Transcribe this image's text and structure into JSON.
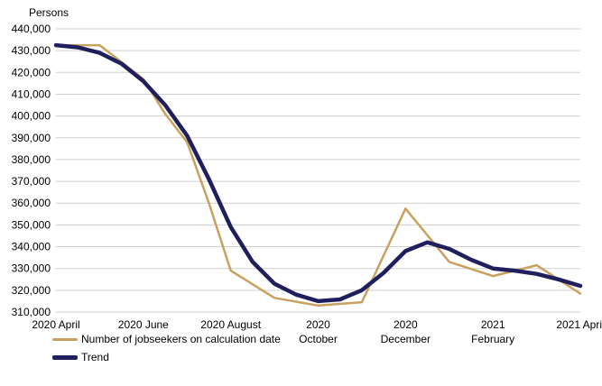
{
  "chart_data": {
    "type": "line",
    "ylabel": "Persons",
    "title": "",
    "ylim": [
      310000,
      440000
    ],
    "yticks": [
      310000,
      320000,
      330000,
      340000,
      350000,
      360000,
      370000,
      380000,
      390000,
      400000,
      410000,
      420000,
      430000,
      440000
    ],
    "ytick_labels": [
      "310,000",
      "320,000",
      "330,000",
      "340,000",
      "350,000",
      "360,000",
      "370,000",
      "380,000",
      "390,000",
      "400,000",
      "410,000",
      "420,000",
      "430,000",
      "440,000"
    ],
    "xlim": [
      0,
      12
    ],
    "x_ticks": [
      {
        "x": 0,
        "line1": "2020 April",
        "line2": ""
      },
      {
        "x": 2,
        "line1": "2020 June",
        "line2": ""
      },
      {
        "x": 4,
        "line1": "2020 August",
        "line2": ""
      },
      {
        "x": 6,
        "line1": "2020",
        "line2": "October"
      },
      {
        "x": 8,
        "line1": "2020",
        "line2": "December"
      },
      {
        "x": 10,
        "line1": "2021",
        "line2": "February"
      },
      {
        "x": 12,
        "line1": "2021 April",
        "line2": ""
      }
    ],
    "series": [
      {
        "name": "Number of jobseekers on calculation date",
        "color": "#c9a15f",
        "points": [
          [
            0,
            432500
          ],
          [
            1,
            432500
          ],
          [
            2,
            417000
          ],
          [
            2.5,
            401000
          ],
          [
            3,
            388000
          ],
          [
            3.5,
            360000
          ],
          [
            4,
            329000
          ],
          [
            5,
            316500
          ],
          [
            6,
            313000
          ],
          [
            7,
            314500
          ],
          [
            8,
            357500
          ],
          [
            9,
            333000
          ],
          [
            10,
            326500
          ],
          [
            11,
            331500
          ],
          [
            12,
            318500
          ]
        ]
      },
      {
        "name": "Trend",
        "color": "#1f1f5e",
        "points": [
          [
            0,
            432500
          ],
          [
            0.5,
            431500
          ],
          [
            1,
            429000
          ],
          [
            1.5,
            424000
          ],
          [
            2,
            416000
          ],
          [
            2.5,
            405000
          ],
          [
            3,
            391000
          ],
          [
            3.5,
            371000
          ],
          [
            4,
            349000
          ],
          [
            4.5,
            333000
          ],
          [
            5,
            323000
          ],
          [
            5.5,
            318000
          ],
          [
            6,
            315000
          ],
          [
            6.5,
            315800
          ],
          [
            7,
            320000
          ],
          [
            7.5,
            328000
          ],
          [
            8,
            338000
          ],
          [
            8.5,
            342000
          ],
          [
            9,
            339000
          ],
          [
            9.5,
            334000
          ],
          [
            10,
            330000
          ],
          [
            10.5,
            329000
          ],
          [
            11,
            327500
          ],
          [
            11.5,
            325000
          ],
          [
            12,
            322000
          ]
        ]
      }
    ]
  }
}
